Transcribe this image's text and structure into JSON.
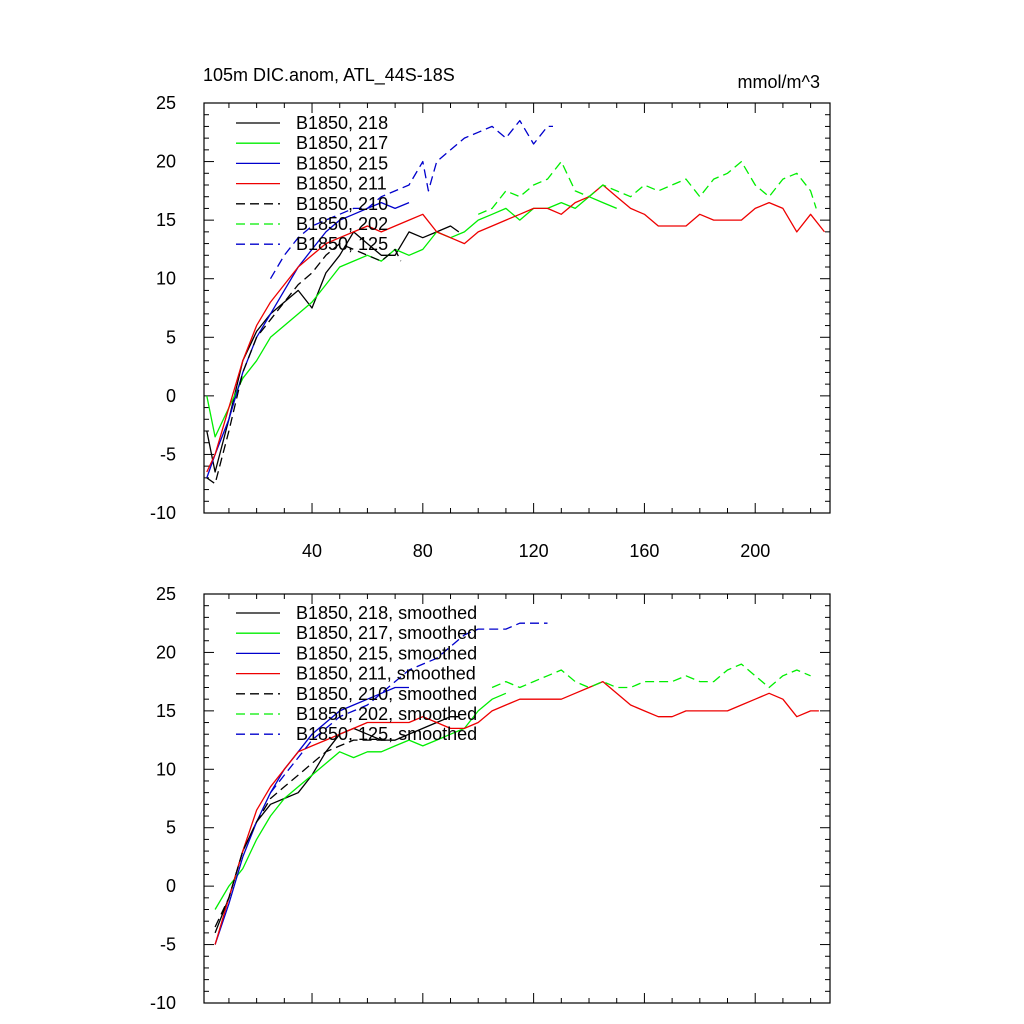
{
  "title_left": "105m DIC.anom, ATL_44S-18S",
  "title_right": "mmol/m^3",
  "colors": {
    "black": "#000000",
    "green": "#00ee00",
    "blue": "#0000cc",
    "red": "#ee0000"
  },
  "chart_data": [
    {
      "type": "line",
      "title": "105m DIC.anom, ATL_44S-18S",
      "units": "mmol/m^3",
      "xlim": [
        1,
        227
      ],
      "ylim": [
        -10,
        25
      ],
      "xticks": [
        40,
        80,
        120,
        160,
        200
      ],
      "yticks": [
        -10,
        -5,
        0,
        5,
        10,
        15,
        20,
        25
      ],
      "legend_position": "top-left",
      "grid": false,
      "series": [
        {
          "name": "B1850, 218",
          "color": "#000000",
          "dash": false,
          "x": [
            2,
            5,
            10,
            15,
            20,
            25,
            30,
            35,
            40,
            45,
            50,
            55,
            60,
            65,
            70,
            75,
            80,
            85,
            90,
            93
          ],
          "y": [
            -3,
            -6.5,
            -2,
            3,
            5.5,
            7,
            8,
            9,
            7.5,
            10.5,
            12,
            14,
            13,
            12,
            12,
            14,
            13.5,
            14,
            14.5,
            14
          ]
        },
        {
          "name": "B1850, 217",
          "color": "#00ee00",
          "dash": false,
          "x": [
            2,
            5,
            10,
            15,
            20,
            25,
            30,
            35,
            40,
            45,
            50,
            55,
            60,
            65,
            70,
            75,
            80,
            85,
            90,
            95,
            100,
            105,
            110,
            115,
            120,
            125,
            130,
            135,
            140,
            145,
            150
          ],
          "y": [
            0,
            -3.5,
            -1,
            1.5,
            3,
            5,
            6,
            7,
            8,
            9.5,
            11,
            11.5,
            12,
            11.5,
            12.5,
            12,
            12.5,
            14,
            13.5,
            14,
            15,
            15.5,
            16,
            15,
            16,
            16,
            16.5,
            16,
            17,
            16.5,
            16
          ]
        },
        {
          "name": "B1850, 215",
          "color": "#0000cc",
          "dash": false,
          "x": [
            2,
            5,
            10,
            15,
            20,
            25,
            30,
            35,
            40,
            45,
            50,
            55,
            60,
            65,
            70,
            75
          ],
          "y": [
            -7,
            -5,
            -2,
            2,
            5,
            7,
            9,
            11,
            12.5,
            14,
            15,
            15.5,
            16,
            16.5,
            16,
            16.5
          ]
        },
        {
          "name": "B1850, 211",
          "color": "#ee0000",
          "dash": false,
          "x": [
            2,
            5,
            10,
            15,
            20,
            25,
            30,
            35,
            40,
            45,
            50,
            55,
            60,
            65,
            70,
            75,
            80,
            85,
            90,
            95,
            100,
            105,
            110,
            115,
            120,
            125,
            130,
            135,
            140,
            145,
            150,
            155,
            160,
            165,
            170,
            175,
            180,
            185,
            190,
            195,
            200,
            205,
            210,
            215,
            220,
            225
          ],
          "y": [
            -6.5,
            -5,
            -1,
            3,
            6,
            8,
            9.5,
            11,
            12,
            13,
            13.5,
            14,
            14.5,
            14,
            14.5,
            15,
            15.5,
            14,
            13.5,
            13,
            14,
            14.5,
            15,
            15.5,
            16,
            16,
            15.5,
            16.5,
            17,
            18,
            17,
            16,
            15.5,
            14.5,
            14.5,
            14.5,
            15.5,
            15,
            15,
            15,
            16,
            16.5,
            16,
            14,
            15.5,
            14
          ]
        },
        {
          "name": "B1850, 210",
          "color": "#000000",
          "dash": true,
          "x": [
            2,
            5,
            10,
            15,
            20,
            25,
            30,
            35,
            40,
            45,
            50,
            55,
            60,
            65,
            70,
            72
          ],
          "y": [
            -7,
            -7.5,
            -3,
            2,
            5,
            6.5,
            8,
            9.5,
            10.5,
            12,
            13,
            12.5,
            12,
            11.5,
            12.5,
            11.5
          ]
        },
        {
          "name": "B1850, 202",
          "color": "#00ee00",
          "dash": true,
          "x": [
            100,
            105,
            110,
            115,
            120,
            125,
            130,
            135,
            140,
            145,
            150,
            155,
            160,
            165,
            170,
            175,
            180,
            185,
            190,
            195,
            200,
            205,
            210,
            215,
            220,
            222
          ],
          "y": [
            15.5,
            16,
            17.5,
            17,
            18,
            18.5,
            20,
            17.5,
            17,
            18,
            17.5,
            17,
            18,
            17.5,
            18,
            18.5,
            17,
            18.5,
            19,
            20,
            18,
            17,
            18.5,
            19,
            17.5,
            16
          ]
        },
        {
          "name": "B1850, 125",
          "color": "#0000cc",
          "dash": true,
          "x": [
            25,
            30,
            35,
            40,
            45,
            50,
            55,
            60,
            65,
            70,
            75,
            80,
            82,
            85,
            90,
            95,
            100,
            105,
            110,
            115,
            120,
            125,
            127
          ],
          "y": [
            10,
            12,
            13.5,
            14.5,
            15,
            15.5,
            16,
            16,
            17,
            17.5,
            18,
            20,
            17.5,
            20,
            21,
            22,
            22.5,
            23,
            22,
            23.5,
            21.5,
            23,
            23
          ]
        }
      ]
    },
    {
      "type": "line",
      "xlim": [
        1,
        227
      ],
      "ylim": [
        -10,
        25
      ],
      "yticks": [
        -10,
        -5,
        0,
        5,
        10,
        15,
        20,
        25
      ],
      "legend_position": "top-left",
      "grid": false,
      "series": [
        {
          "name": "B1850, 218, smoothed",
          "color": "#000000",
          "dash": false,
          "x": [
            5,
            10,
            15,
            20,
            25,
            30,
            35,
            40,
            45,
            50,
            55,
            60,
            65,
            70,
            75,
            80,
            85,
            90,
            93
          ],
          "y": [
            -4,
            -1,
            3,
            5.5,
            7,
            7.5,
            8,
            9.5,
            11.5,
            13,
            13.5,
            13,
            12.5,
            12.5,
            13,
            13.5,
            14,
            14.5,
            14.5
          ]
        },
        {
          "name": "B1850, 217, smoothed",
          "color": "#00ee00",
          "dash": false,
          "x": [
            5,
            10,
            15,
            20,
            25,
            30,
            35,
            40,
            45,
            50,
            55,
            60,
            65,
            70,
            75,
            80,
            85,
            90,
            95,
            100,
            105,
            110
          ],
          "y": [
            -2,
            0,
            1.5,
            4,
            6,
            7.5,
            8.5,
            9.5,
            10.5,
            11.5,
            11,
            11.5,
            11.5,
            12,
            12.5,
            12,
            12.5,
            13,
            13.5,
            15,
            16,
            16.5
          ]
        },
        {
          "name": "B1850, 215, smoothed",
          "color": "#0000cc",
          "dash": false,
          "x": [
            5,
            10,
            15,
            20,
            25,
            30,
            35,
            40,
            45,
            50,
            55,
            60,
            65,
            70,
            75
          ],
          "y": [
            -5,
            -1.5,
            2.5,
            5.5,
            8,
            10,
            11.5,
            13,
            14,
            15,
            15.5,
            16,
            16.5,
            17,
            17
          ]
        },
        {
          "name": "B1850, 211, smoothed",
          "color": "#ee0000",
          "dash": false,
          "x": [
            5,
            10,
            15,
            20,
            25,
            30,
            35,
            40,
            45,
            50,
            55,
            60,
            65,
            70,
            75,
            80,
            85,
            90,
            95,
            100,
            105,
            110,
            115,
            120,
            125,
            130,
            135,
            140,
            145,
            150,
            155,
            160,
            165,
            170,
            175,
            180,
            185,
            190,
            195,
            200,
            205,
            210,
            215,
            220,
            223
          ],
          "y": [
            -5,
            -1,
            3,
            6.5,
            8.5,
            10,
            11.5,
            12,
            12.5,
            13,
            13.5,
            14,
            14,
            14,
            14,
            14.5,
            14,
            13.5,
            13.5,
            14,
            15,
            15.5,
            16,
            16,
            16,
            16,
            16.5,
            17,
            17.5,
            16.5,
            15.5,
            15,
            14.5,
            14.5,
            15,
            15,
            15,
            15,
            15.5,
            16,
            16.5,
            16,
            14.5,
            15,
            15
          ]
        },
        {
          "name": "B1850, 210, smoothed",
          "color": "#000000",
          "dash": true,
          "x": [
            5,
            10,
            15,
            20,
            25,
            30,
            35,
            40,
            45,
            50,
            55,
            60,
            65,
            70
          ],
          "y": [
            -3.5,
            -1,
            3,
            5.5,
            7.5,
            8.5,
            9.5,
            10.5,
            11.5,
            12,
            12.5,
            12.5,
            12.5,
            12.5
          ]
        },
        {
          "name": "B1850, 202, smoothed",
          "color": "#00ee00",
          "dash": true,
          "x": [
            105,
            110,
            115,
            120,
            125,
            130,
            135,
            140,
            145,
            150,
            155,
            160,
            165,
            170,
            175,
            180,
            185,
            190,
            195,
            200,
            205,
            210,
            215,
            220
          ],
          "y": [
            17,
            17.5,
            17,
            17.5,
            18,
            18.5,
            17.5,
            17,
            17.5,
            17,
            17,
            17.5,
            17.5,
            17.5,
            18,
            17.5,
            17.5,
            18.5,
            19,
            18,
            17,
            18,
            18.5,
            18
          ]
        },
        {
          "name": "B1850, 125, smoothed",
          "color": "#0000cc",
          "dash": true,
          "x": [
            25,
            30,
            35,
            40,
            45,
            50,
            55,
            60,
            65,
            70,
            75,
            80,
            85,
            90,
            95,
            100,
            105,
            110,
            115,
            120,
            125
          ],
          "y": [
            8,
            9.5,
            11,
            12.5,
            13.5,
            14.5,
            15,
            15.5,
            16.5,
            17.5,
            18.5,
            19,
            19.5,
            20.5,
            21.5,
            22,
            22,
            22,
            22.5,
            22.5,
            22.5
          ]
        }
      ]
    }
  ]
}
